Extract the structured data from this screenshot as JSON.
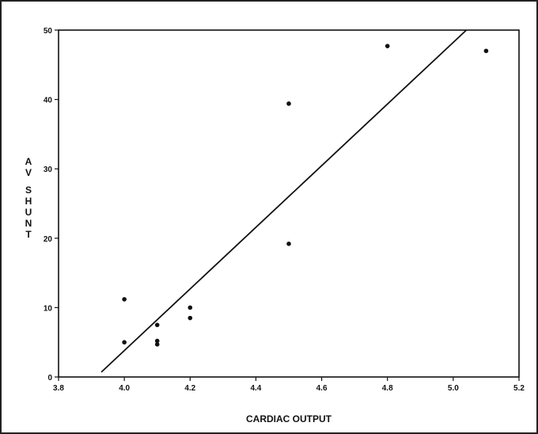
{
  "chart_data": {
    "type": "scatter",
    "title": "",
    "xlabel": "CARDIAC OUTPUT",
    "ylabel": "AV SHUNT",
    "xlim": [
      3.8,
      5.2
    ],
    "ylim": [
      0,
      50
    ],
    "xticks": [
      "3.8",
      "4.0",
      "4.2",
      "4.4",
      "4.6",
      "4.8",
      "5.0",
      "5.2"
    ],
    "yticks": [
      "0",
      "10",
      "20",
      "30",
      "40",
      "50"
    ],
    "grid": false,
    "legend": "none",
    "series": [
      {
        "points": [
          {
            "x": 4.0,
            "y": 11.2
          },
          {
            "x": 4.0,
            "y": 5.0
          },
          {
            "x": 4.1,
            "y": 7.5
          },
          {
            "x": 4.1,
            "y": 5.2
          },
          {
            "x": 4.1,
            "y": 4.7
          },
          {
            "x": 4.2,
            "y": 10.0
          },
          {
            "x": 4.2,
            "y": 8.5
          },
          {
            "x": 4.5,
            "y": 39.4
          },
          {
            "x": 4.5,
            "y": 19.2
          },
          {
            "x": 4.8,
            "y": 47.7
          },
          {
            "x": 5.1,
            "y": 47.0
          }
        ]
      }
    ],
    "fit_line": {
      "x1": 3.93,
      "y1": 0.7,
      "x2": 5.04,
      "y2": 50.0
    },
    "colors": {
      "ink": "#111111",
      "background": "#ffffff"
    }
  }
}
